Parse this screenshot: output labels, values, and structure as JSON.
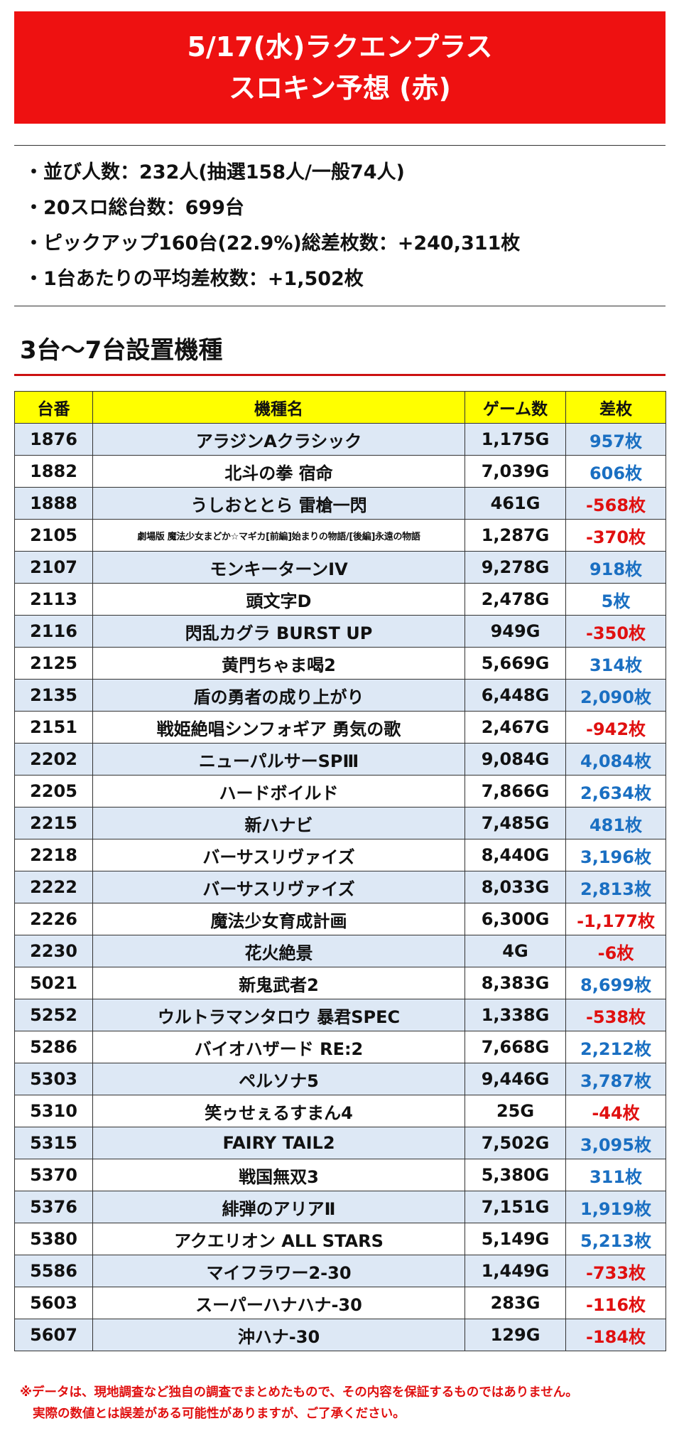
{
  "header": {
    "line1": "5/17(水)ラクエンプラス",
    "line2": "スロキン予想 (赤)"
  },
  "stats": [
    "・並び人数：232人(抽選158人/一般74人)",
    "・20スロ総台数：699台",
    "・ピックアップ160台(22.9%)総差枚数：+240,311枚",
    "・1台あたりの平均差枚数：+1,502枚"
  ],
  "section_title": "3台〜7台設置機種",
  "table": {
    "headers": [
      "台番",
      "機種名",
      "ゲーム数",
      "差枚"
    ],
    "rows": [
      {
        "no": "1876",
        "name": "アラジンAクラシック",
        "games": "1,175G",
        "diff": "957枚",
        "neg": false
      },
      {
        "no": "1882",
        "name": "北斗の拳 宿命",
        "games": "7,039G",
        "diff": "606枚",
        "neg": false
      },
      {
        "no": "1888",
        "name": "うしおととら 雷槍一閃",
        "games": "461G",
        "diff": "-568枚",
        "neg": true
      },
      {
        "no": "2105",
        "name": "劇場版 魔法少女まどか☆マギカ[前編]始まりの物語/[後編]永遠の物語",
        "games": "1,287G",
        "diff": "-370枚",
        "neg": true,
        "small": true
      },
      {
        "no": "2107",
        "name": "モンキーターンIV",
        "games": "9,278G",
        "diff": "918枚",
        "neg": false
      },
      {
        "no": "2113",
        "name": "頭文字D",
        "games": "2,478G",
        "diff": "5枚",
        "neg": false
      },
      {
        "no": "2116",
        "name": "閃乱カグラ BURST UP",
        "games": "949G",
        "diff": "-350枚",
        "neg": true
      },
      {
        "no": "2125",
        "name": "黄門ちゃま喝2",
        "games": "5,669G",
        "diff": "314枚",
        "neg": false
      },
      {
        "no": "2135",
        "name": "盾の勇者の成り上がり",
        "games": "6,448G",
        "diff": "2,090枚",
        "neg": false
      },
      {
        "no": "2151",
        "name": "戦姫絶唱シンフォギア 勇気の歌",
        "games": "2,467G",
        "diff": "-942枚",
        "neg": true
      },
      {
        "no": "2202",
        "name": "ニューパルサーSPⅢ",
        "games": "9,084G",
        "diff": "4,084枚",
        "neg": false
      },
      {
        "no": "2205",
        "name": "ハードボイルド",
        "games": "7,866G",
        "diff": "2,634枚",
        "neg": false
      },
      {
        "no": "2215",
        "name": "新ハナビ",
        "games": "7,485G",
        "diff": "481枚",
        "neg": false
      },
      {
        "no": "2218",
        "name": "バーサスリヴァイズ",
        "games": "8,440G",
        "diff": "3,196枚",
        "neg": false
      },
      {
        "no": "2222",
        "name": "バーサスリヴァイズ",
        "games": "8,033G",
        "diff": "2,813枚",
        "neg": false
      },
      {
        "no": "2226",
        "name": "魔法少女育成計画",
        "games": "6,300G",
        "diff": "-1,177枚",
        "neg": true
      },
      {
        "no": "2230",
        "name": "花火絶景",
        "games": "4G",
        "diff": "-6枚",
        "neg": true
      },
      {
        "no": "5021",
        "name": "新鬼武者2",
        "games": "8,383G",
        "diff": "8,699枚",
        "neg": false
      },
      {
        "no": "5252",
        "name": "ウルトラマンタロウ 暴君SPEC",
        "games": "1,338G",
        "diff": "-538枚",
        "neg": true
      },
      {
        "no": "5286",
        "name": "バイオハザード RE:2",
        "games": "7,668G",
        "diff": "2,212枚",
        "neg": false
      },
      {
        "no": "5303",
        "name": "ペルソナ5",
        "games": "9,446G",
        "diff": "3,787枚",
        "neg": false
      },
      {
        "no": "5310",
        "name": "笑ゥせぇるすまん4",
        "games": "25G",
        "diff": "-44枚",
        "neg": true
      },
      {
        "no": "5315",
        "name": "FAIRY TAIL2",
        "games": "7,502G",
        "diff": "3,095枚",
        "neg": false
      },
      {
        "no": "5370",
        "name": "戦国無双3",
        "games": "5,380G",
        "diff": "311枚",
        "neg": false
      },
      {
        "no": "5376",
        "name": "緋弾のアリアⅡ",
        "games": "7,151G",
        "diff": "1,919枚",
        "neg": false
      },
      {
        "no": "5380",
        "name": "アクエリオン ALL STARS",
        "games": "5,149G",
        "diff": "5,213枚",
        "neg": false
      },
      {
        "no": "5586",
        "name": "マイフラワー2-30",
        "games": "1,449G",
        "diff": "-733枚",
        "neg": true
      },
      {
        "no": "5603",
        "name": "スーパーハナハナ-30",
        "games": "283G",
        "diff": "-116枚",
        "neg": true
      },
      {
        "no": "5607",
        "name": "沖ハナ-30",
        "games": "129G",
        "diff": "-184枚",
        "neg": true
      }
    ]
  },
  "colors": {
    "header_bg": "#ee1111",
    "header_row_bg": "#ffff00",
    "stripe_bg": "#dde8f5",
    "positive": "#1a6fc2",
    "negative": "#e01010"
  },
  "note": [
    "※データは、現地調査など独自の調査でまとめたもので、その内容を保証するものではありません。",
    "実際の数値とは誤差がある可能性がありますが、ご了承ください。"
  ]
}
